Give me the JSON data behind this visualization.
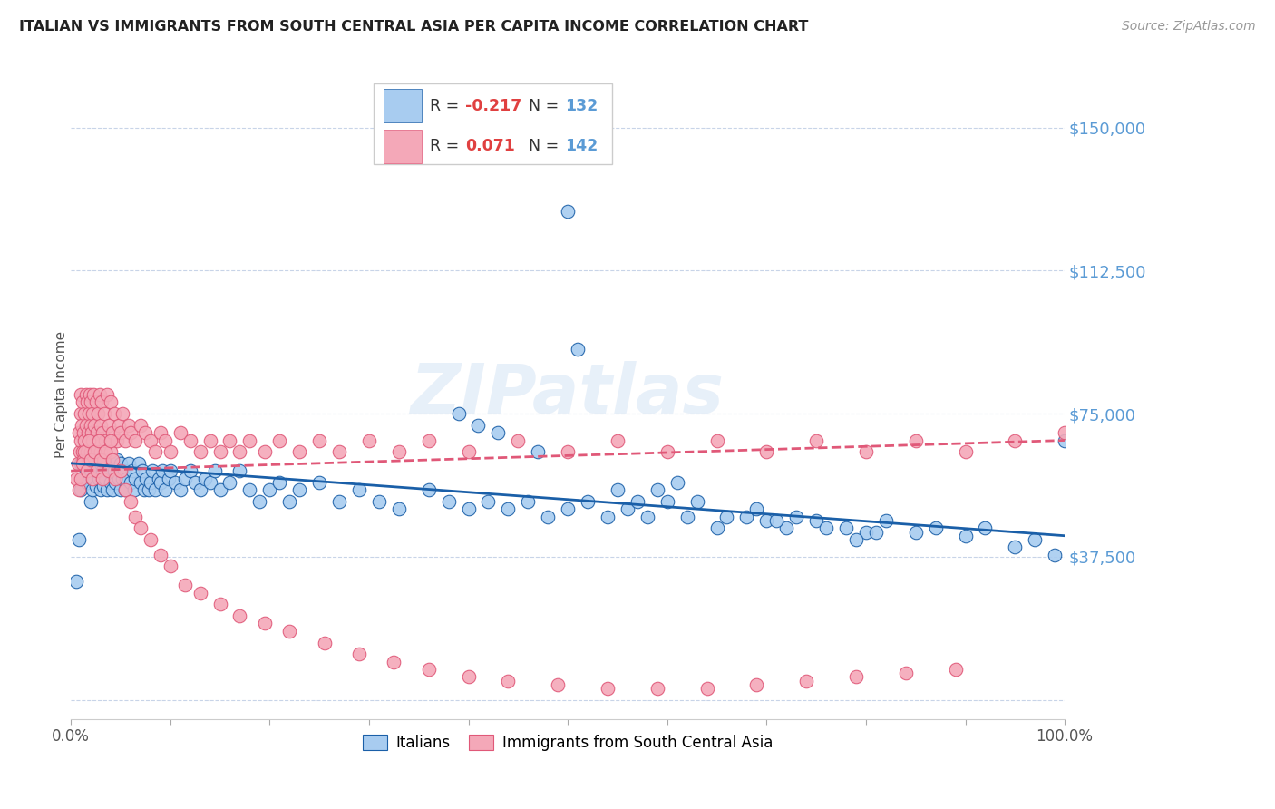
{
  "title": "ITALIAN VS IMMIGRANTS FROM SOUTH CENTRAL ASIA PER CAPITA INCOME CORRELATION CHART",
  "source": "Source: ZipAtlas.com",
  "ylabel": "Per Capita Income",
  "yticks": [
    0,
    37500,
    75000,
    112500,
    150000
  ],
  "ytick_labels": [
    "",
    "$37,500",
    "$75,000",
    "$112,500",
    "$150,000"
  ],
  "xlim": [
    0.0,
    1.0
  ],
  "ylim": [
    -5000,
    165000
  ],
  "legend_label1": "Italians",
  "legend_label2": "Immigrants from South Central Asia",
  "watermark": "ZIPatlas",
  "italian_color": "#A8CCF0",
  "immigrant_color": "#F4A8B8",
  "trendline_italian_color": "#1A5FA8",
  "trendline_immigrant_color": "#E05878",
  "background_color": "#FFFFFF",
  "grid_color": "#C8D4E8",
  "yaxis_label_color": "#5B9BD5",
  "title_color": "#222222",
  "italians_x": [
    0.005,
    0.008,
    0.01,
    0.01,
    0.012,
    0.014,
    0.015,
    0.015,
    0.016,
    0.018,
    0.02,
    0.02,
    0.02,
    0.022,
    0.022,
    0.024,
    0.025,
    0.025,
    0.026,
    0.028,
    0.03,
    0.03,
    0.032,
    0.033,
    0.034,
    0.035,
    0.036,
    0.038,
    0.04,
    0.04,
    0.042,
    0.044,
    0.045,
    0.046,
    0.048,
    0.05,
    0.05,
    0.052,
    0.054,
    0.055,
    0.056,
    0.058,
    0.06,
    0.062,
    0.064,
    0.065,
    0.068,
    0.07,
    0.072,
    0.074,
    0.076,
    0.078,
    0.08,
    0.082,
    0.085,
    0.088,
    0.09,
    0.092,
    0.095,
    0.098,
    0.1,
    0.105,
    0.11,
    0.115,
    0.12,
    0.125,
    0.13,
    0.135,
    0.14,
    0.145,
    0.15,
    0.16,
    0.17,
    0.18,
    0.19,
    0.2,
    0.21,
    0.22,
    0.23,
    0.25,
    0.27,
    0.29,
    0.31,
    0.33,
    0.36,
    0.38,
    0.4,
    0.42,
    0.44,
    0.46,
    0.48,
    0.5,
    0.52,
    0.54,
    0.56,
    0.58,
    0.6,
    0.62,
    0.65,
    0.68,
    0.7,
    0.72,
    0.75,
    0.78,
    0.8,
    0.82,
    0.85,
    0.87,
    0.9,
    0.92,
    0.95,
    0.97,
    0.99,
    1.0,
    0.5,
    0.51,
    0.39,
    0.41,
    0.43,
    0.47,
    0.55,
    0.57,
    0.59,
    0.61,
    0.63,
    0.66,
    0.69,
    0.71,
    0.73,
    0.76,
    0.79,
    0.81
  ],
  "italians_y": [
    31000,
    42000,
    55000,
    62000,
    58000,
    65000,
    60000,
    68000,
    57000,
    63000,
    52000,
    60000,
    65000,
    58000,
    55000,
    62000,
    60000,
    56000,
    64000,
    58000,
    55000,
    62000,
    60000,
    56000,
    63000,
    58000,
    55000,
    60000,
    62000,
    57000,
    55000,
    60000,
    57000,
    63000,
    58000,
    62000,
    55000,
    58000,
    60000,
    55000,
    58000,
    62000,
    57000,
    60000,
    55000,
    58000,
    62000,
    57000,
    60000,
    55000,
    58000,
    55000,
    57000,
    60000,
    55000,
    58000,
    57000,
    60000,
    55000,
    58000,
    60000,
    57000,
    55000,
    58000,
    60000,
    57000,
    55000,
    58000,
    57000,
    60000,
    55000,
    57000,
    60000,
    55000,
    52000,
    55000,
    57000,
    52000,
    55000,
    57000,
    52000,
    55000,
    52000,
    50000,
    55000,
    52000,
    50000,
    52000,
    50000,
    52000,
    48000,
    50000,
    52000,
    48000,
    50000,
    48000,
    52000,
    48000,
    45000,
    48000,
    47000,
    45000,
    47000,
    45000,
    44000,
    47000,
    44000,
    45000,
    43000,
    45000,
    40000,
    42000,
    38000,
    68000,
    128000,
    92000,
    75000,
    72000,
    70000,
    65000,
    55000,
    52000,
    55000,
    57000,
    52000,
    48000,
    50000,
    47000,
    48000,
    45000,
    42000,
    44000
  ],
  "immigrants_x": [
    0.005,
    0.007,
    0.008,
    0.009,
    0.01,
    0.01,
    0.01,
    0.011,
    0.012,
    0.012,
    0.013,
    0.013,
    0.014,
    0.014,
    0.015,
    0.015,
    0.016,
    0.016,
    0.017,
    0.017,
    0.018,
    0.018,
    0.019,
    0.02,
    0.02,
    0.02,
    0.021,
    0.021,
    0.022,
    0.022,
    0.023,
    0.024,
    0.025,
    0.025,
    0.026,
    0.027,
    0.028,
    0.029,
    0.03,
    0.03,
    0.031,
    0.032,
    0.033,
    0.034,
    0.035,
    0.036,
    0.038,
    0.04,
    0.04,
    0.042,
    0.044,
    0.046,
    0.048,
    0.05,
    0.052,
    0.055,
    0.058,
    0.06,
    0.065,
    0.07,
    0.075,
    0.08,
    0.085,
    0.09,
    0.095,
    0.1,
    0.11,
    0.12,
    0.13,
    0.14,
    0.15,
    0.16,
    0.17,
    0.18,
    0.195,
    0.21,
    0.23,
    0.25,
    0.27,
    0.3,
    0.33,
    0.36,
    0.4,
    0.45,
    0.5,
    0.55,
    0.6,
    0.65,
    0.7,
    0.75,
    0.8,
    0.85,
    0.9,
    0.95,
    1.0,
    0.008,
    0.01,
    0.012,
    0.014,
    0.016,
    0.018,
    0.02,
    0.022,
    0.024,
    0.026,
    0.028,
    0.03,
    0.032,
    0.035,
    0.038,
    0.04,
    0.042,
    0.045,
    0.05,
    0.055,
    0.06,
    0.065,
    0.07,
    0.08,
    0.09,
    0.1,
    0.115,
    0.13,
    0.15,
    0.17,
    0.195,
    0.22,
    0.255,
    0.29,
    0.325,
    0.36,
    0.4,
    0.44,
    0.49,
    0.54,
    0.59,
    0.64,
    0.69,
    0.74,
    0.79,
    0.84,
    0.89
  ],
  "immigrants_y": [
    58000,
    62000,
    70000,
    65000,
    68000,
    75000,
    80000,
    72000,
    65000,
    78000,
    70000,
    63000,
    75000,
    68000,
    80000,
    72000,
    65000,
    78000,
    70000,
    63000,
    75000,
    68000,
    80000,
    72000,
    65000,
    78000,
    70000,
    63000,
    75000,
    68000,
    80000,
    72000,
    65000,
    78000,
    70000,
    75000,
    68000,
    80000,
    72000,
    65000,
    78000,
    70000,
    63000,
    75000,
    68000,
    80000,
    72000,
    65000,
    78000,
    70000,
    75000,
    68000,
    72000,
    70000,
    75000,
    68000,
    72000,
    70000,
    68000,
    72000,
    70000,
    68000,
    65000,
    70000,
    68000,
    65000,
    70000,
    68000,
    65000,
    68000,
    65000,
    68000,
    65000,
    68000,
    65000,
    68000,
    65000,
    68000,
    65000,
    68000,
    65000,
    68000,
    65000,
    68000,
    65000,
    68000,
    65000,
    68000,
    65000,
    68000,
    65000,
    68000,
    65000,
    68000,
    70000,
    55000,
    58000,
    62000,
    65000,
    60000,
    68000,
    63000,
    58000,
    65000,
    60000,
    68000,
    63000,
    58000,
    65000,
    60000,
    68000,
    63000,
    58000,
    60000,
    55000,
    52000,
    48000,
    45000,
    42000,
    38000,
    35000,
    30000,
    28000,
    25000,
    22000,
    20000,
    18000,
    15000,
    12000,
    10000,
    8000,
    6000,
    5000,
    4000,
    3000,
    3000,
    3000,
    4000,
    5000,
    6000,
    7000,
    8000
  ]
}
